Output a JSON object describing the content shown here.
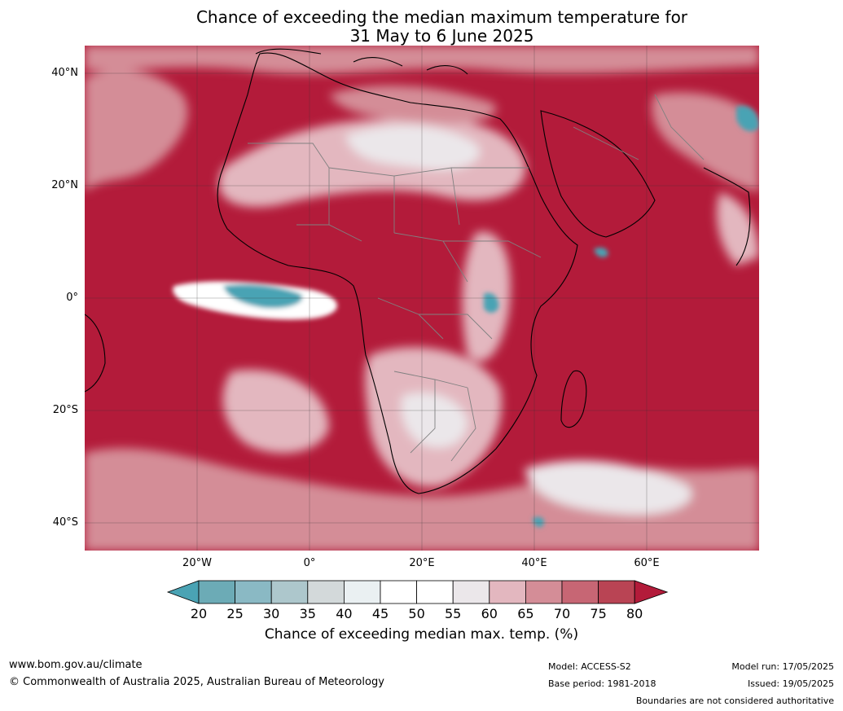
{
  "title": {
    "line1": "Chance of exceeding the median maximum temperature for",
    "line2": "31 May to 6 June 2025"
  },
  "map": {
    "lat_labels": [
      "40°N",
      "20°N",
      "0°",
      "20°S",
      "40°S"
    ],
    "lon_labels": [
      "20°W",
      "0°",
      "20°E",
      "40°E",
      "60°E"
    ],
    "colors": {
      "dominant": "#b31b3a",
      "land_outline": "#000000",
      "borders": "#808080"
    }
  },
  "colorbar": {
    "ticks": [
      "20",
      "25",
      "30",
      "35",
      "40",
      "45",
      "50",
      "55",
      "60",
      "65",
      "70",
      "75",
      "80"
    ],
    "colors": [
      "#4aa3b4",
      "#6cabb6",
      "#8ab9c4",
      "#adc7cc",
      "#d3d9da",
      "#eaf0f2",
      "#ffffff",
      "#ffffff",
      "#ebe7ea",
      "#e3b7bf",
      "#d48d97",
      "#c76674",
      "#b94454",
      "#b31b3a"
    ],
    "label": "Chance of exceeding median max. temp. (%)"
  },
  "footer": {
    "url": "www.bom.gov.au/climate",
    "copyright": "© Commonwealth of Australia 2025, Australian Bureau of Meteorology",
    "model": "Model: ACCESS-S2",
    "base_period": "Base period: 1981-2018",
    "model_run": "Model run: 17/05/2025",
    "issued": "Issued: 19/05/2025",
    "disclaimer": "Boundaries are not considered authoritative"
  }
}
